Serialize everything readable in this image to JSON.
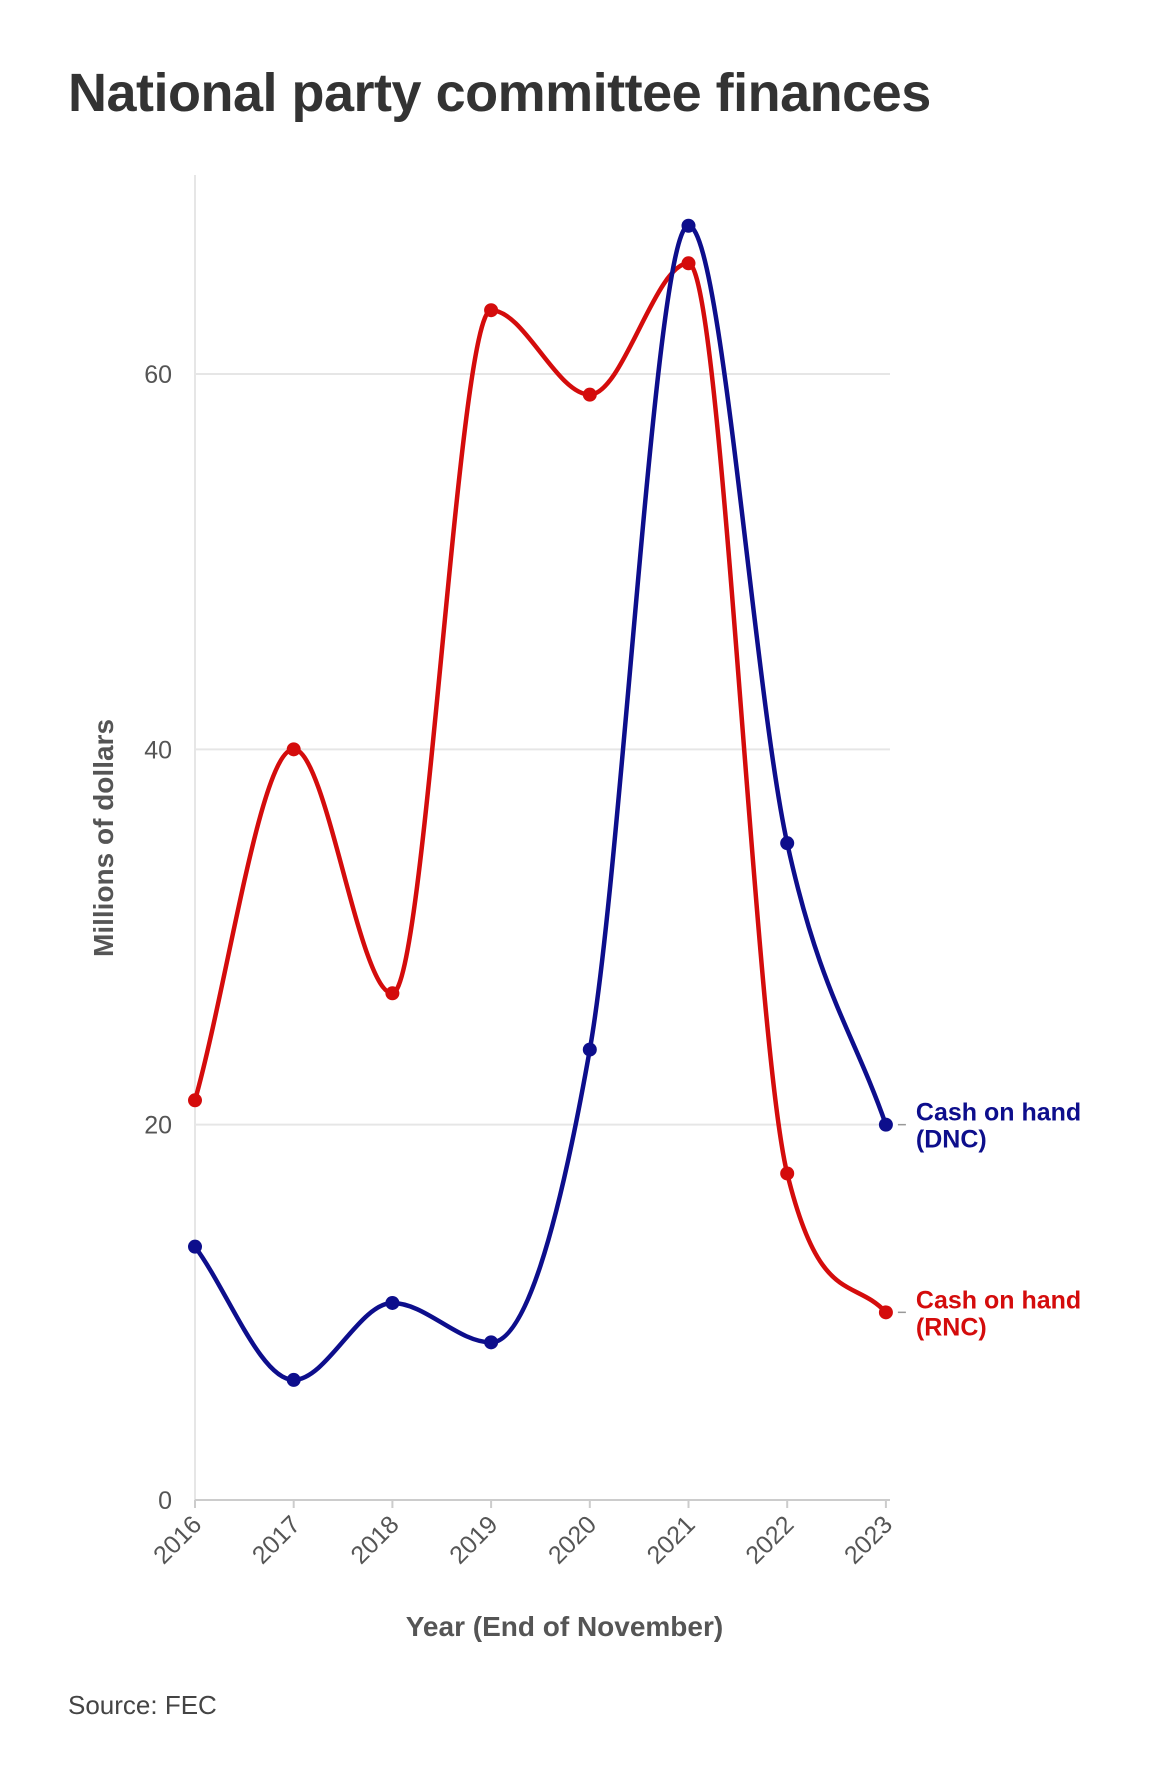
{
  "title": "National party committee finances",
  "source": "Source: FEC",
  "colors": {
    "dnc": "#0d0e8c",
    "rnc": "#d40c0c",
    "grid": "#e6e6e6",
    "axis": "#cccccc"
  },
  "chart_data": {
    "type": "line",
    "title": "National party committee finances",
    "xlabel": "Year (End of November)",
    "ylabel": "Millions of dollars",
    "x": [
      "2016",
      "2017",
      "2018",
      "2019",
      "2020",
      "2021",
      "2022",
      "2023"
    ],
    "yticks": [
      "0",
      "20",
      "40",
      "60"
    ],
    "ylim": [
      0,
      70
    ],
    "grid": true,
    "legend": "direct labels at line ends (right)",
    "series": [
      {
        "name": "Cash on hand (DNC)",
        "label_lines": [
          "Cash on hand",
          "(DNC)"
        ],
        "color": "#0d0e8c",
        "values": [
          13.5,
          6.4,
          10.5,
          8.4,
          24.0,
          67.9,
          35.0,
          20.0
        ]
      },
      {
        "name": "Cash on hand (RNC)",
        "label_lines": [
          "Cash on hand",
          "(RNC)"
        ],
        "color": "#d40c0c",
        "values": [
          21.3,
          40.0,
          27.0,
          63.4,
          58.9,
          65.9,
          17.4,
          10.0
        ]
      }
    ]
  }
}
